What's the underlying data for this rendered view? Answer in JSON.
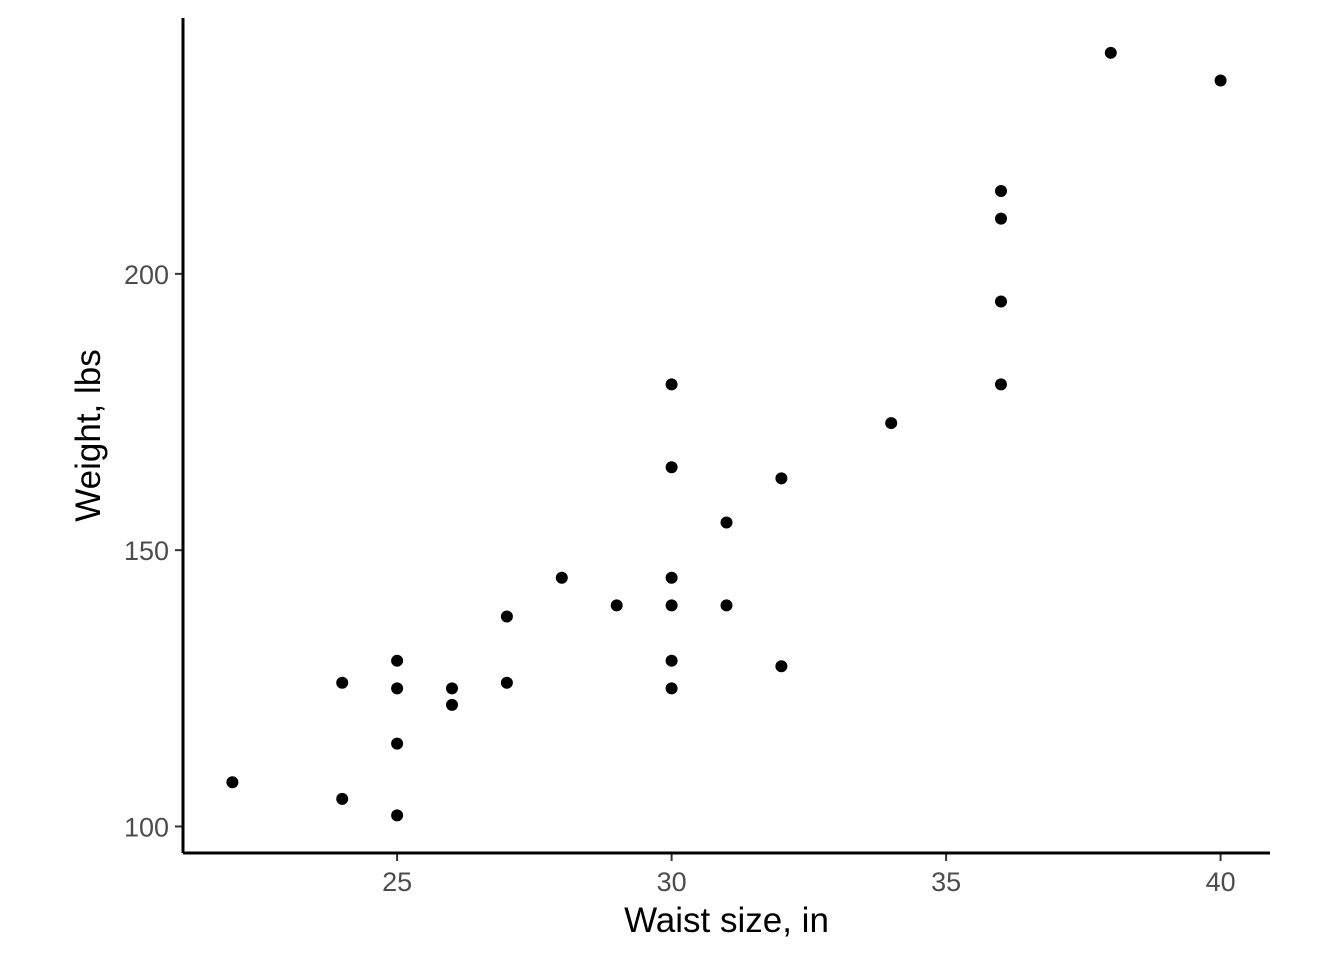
{
  "chart_data": {
    "type": "scatter",
    "title": "",
    "xlabel": "Waist size, in",
    "ylabel": "Weight, lbs",
    "xlim": [
      21.1,
      40.9
    ],
    "ylim": [
      95.2,
      246.3
    ],
    "x_ticks": [
      25,
      30,
      35,
      40
    ],
    "y_ticks": [
      100,
      150,
      200
    ],
    "grid": false,
    "legend": "none",
    "point_color": "#000000",
    "points": [
      {
        "x": 22,
        "y": 108
      },
      {
        "x": 24,
        "y": 126
      },
      {
        "x": 24,
        "y": 105
      },
      {
        "x": 25,
        "y": 130
      },
      {
        "x": 25,
        "y": 125
      },
      {
        "x": 25,
        "y": 115
      },
      {
        "x": 25,
        "y": 102
      },
      {
        "x": 26,
        "y": 125
      },
      {
        "x": 26,
        "y": 122
      },
      {
        "x": 27,
        "y": 138
      },
      {
        "x": 27,
        "y": 126
      },
      {
        "x": 28,
        "y": 145
      },
      {
        "x": 29,
        "y": 140
      },
      {
        "x": 30,
        "y": 180
      },
      {
        "x": 30,
        "y": 165
      },
      {
        "x": 30,
        "y": 145
      },
      {
        "x": 30,
        "y": 140
      },
      {
        "x": 30,
        "y": 130
      },
      {
        "x": 30,
        "y": 125
      },
      {
        "x": 31,
        "y": 155
      },
      {
        "x": 31,
        "y": 140
      },
      {
        "x": 32,
        "y": 163
      },
      {
        "x": 32,
        "y": 129
      },
      {
        "x": 34,
        "y": 173
      },
      {
        "x": 36,
        "y": 215
      },
      {
        "x": 36,
        "y": 210
      },
      {
        "x": 36,
        "y": 195
      },
      {
        "x": 36,
        "y": 180
      },
      {
        "x": 38,
        "y": 240
      },
      {
        "x": 40,
        "y": 235
      }
    ]
  }
}
